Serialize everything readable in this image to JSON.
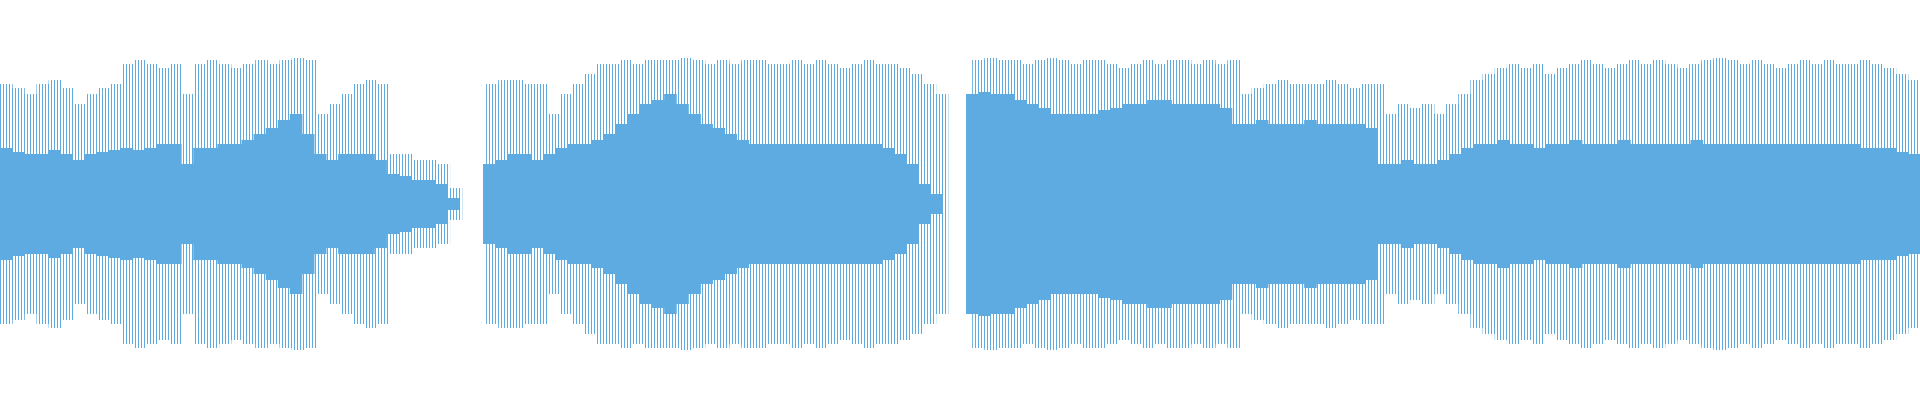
{
  "chart_data": {
    "type": "waveform",
    "ylim": [
      0,
      1
    ],
    "color": "#5dabe1",
    "series": [
      {
        "values": [
          0.6,
          0.58,
          0.55,
          0.6,
          0.62,
          0.58,
          0.5,
          0.55,
          0.58,
          0.6,
          0.7,
          0.72,
          0.7,
          0.68,
          0.7,
          0.55,
          0.7,
          0.72,
          0.7,
          0.68,
          0.7,
          0.72,
          0.7,
          0.72,
          0.73,
          0.72,
          0.45,
          0.5,
          0.55,
          0.6,
          0.62,
          0.6,
          0.25,
          0.25,
          0.22,
          0.22,
          0.2,
          0.08,
          null,
          null,
          0.6,
          0.62,
          0.62,
          0.6,
          0.6,
          0.45,
          0.55,
          0.6,
          0.65,
          0.7,
          0.7,
          0.72,
          0.7,
          0.72,
          0.72,
          0.72,
          0.73,
          0.72,
          0.7,
          0.72,
          0.7,
          0.72,
          0.72,
          0.7,
          0.7,
          0.72,
          0.7,
          0.72,
          0.7,
          0.68,
          0.7,
          0.72,
          0.7,
          0.7,
          0.68,
          0.65,
          0.6,
          0.55,
          null,
          null,
          0.72,
          0.73,
          0.72,
          0.72,
          0.7,
          0.72,
          0.73,
          0.72,
          0.7,
          0.72,
          0.72,
          0.7,
          0.68,
          0.7,
          0.72,
          0.7,
          0.72,
          0.72,
          0.7,
          0.72,
          0.7,
          0.72,
          0.55,
          0.58,
          0.6,
          0.62,
          0.6,
          0.6,
          0.6,
          0.62,
          0.6,
          0.58,
          0.6,
          0.6,
          0.45,
          0.5,
          0.48,
          0.5,
          0.45,
          0.5,
          0.55,
          0.62,
          0.65,
          0.68,
          0.7,
          0.68,
          0.7,
          0.65,
          0.68,
          0.7,
          0.72,
          0.7,
          0.68,
          0.7,
          0.72,
          0.7,
          0.72,
          0.7,
          0.68,
          0.7,
          0.72,
          0.73,
          0.72,
          0.7,
          0.72,
          0.7,
          0.68,
          0.7,
          0.72,
          0.7,
          0.72,
          0.7,
          0.7,
          0.72,
          0.7,
          0.68,
          0.65,
          0.62
        ]
      },
      {
        "values": [
          0.28,
          0.26,
          0.25,
          0.25,
          0.27,
          0.25,
          0.22,
          0.25,
          0.26,
          0.27,
          0.28,
          0.27,
          0.28,
          0.3,
          0.3,
          0.2,
          0.28,
          0.28,
          0.3,
          0.3,
          0.32,
          0.35,
          0.38,
          0.42,
          0.45,
          0.35,
          0.25,
          0.22,
          0.25,
          0.25,
          0.25,
          0.22,
          0.15,
          0.14,
          0.12,
          0.12,
          0.1,
          0.03,
          null,
          null,
          0.2,
          0.22,
          0.25,
          0.25,
          0.22,
          0.25,
          0.28,
          0.3,
          0.3,
          0.32,
          0.35,
          0.4,
          0.45,
          0.5,
          0.52,
          0.55,
          0.5,
          0.45,
          0.4,
          0.38,
          0.35,
          0.32,
          0.3,
          0.3,
          0.3,
          0.3,
          0.3,
          0.3,
          0.3,
          0.3,
          0.3,
          0.3,
          0.3,
          0.28,
          0.25,
          0.2,
          0.1,
          0.05,
          null,
          null,
          0.55,
          0.56,
          0.55,
          0.55,
          0.52,
          0.5,
          0.48,
          0.45,
          0.45,
          0.45,
          0.45,
          0.47,
          0.48,
          0.5,
          0.5,
          0.52,
          0.52,
          0.5,
          0.5,
          0.5,
          0.5,
          0.48,
          0.4,
          0.4,
          0.42,
          0.4,
          0.4,
          0.4,
          0.42,
          0.4,
          0.4,
          0.4,
          0.4,
          0.38,
          0.2,
          0.2,
          0.22,
          0.2,
          0.2,
          0.22,
          0.25,
          0.28,
          0.3,
          0.3,
          0.32,
          0.3,
          0.3,
          0.28,
          0.3,
          0.3,
          0.32,
          0.3,
          0.3,
          0.3,
          0.32,
          0.3,
          0.3,
          0.3,
          0.3,
          0.3,
          0.32,
          0.3,
          0.3,
          0.3,
          0.3,
          0.3,
          0.3,
          0.3,
          0.3,
          0.3,
          0.3,
          0.3,
          0.3,
          0.3,
          0.28,
          0.28,
          0.28,
          0.26,
          0.25
        ]
      }
    ]
  }
}
